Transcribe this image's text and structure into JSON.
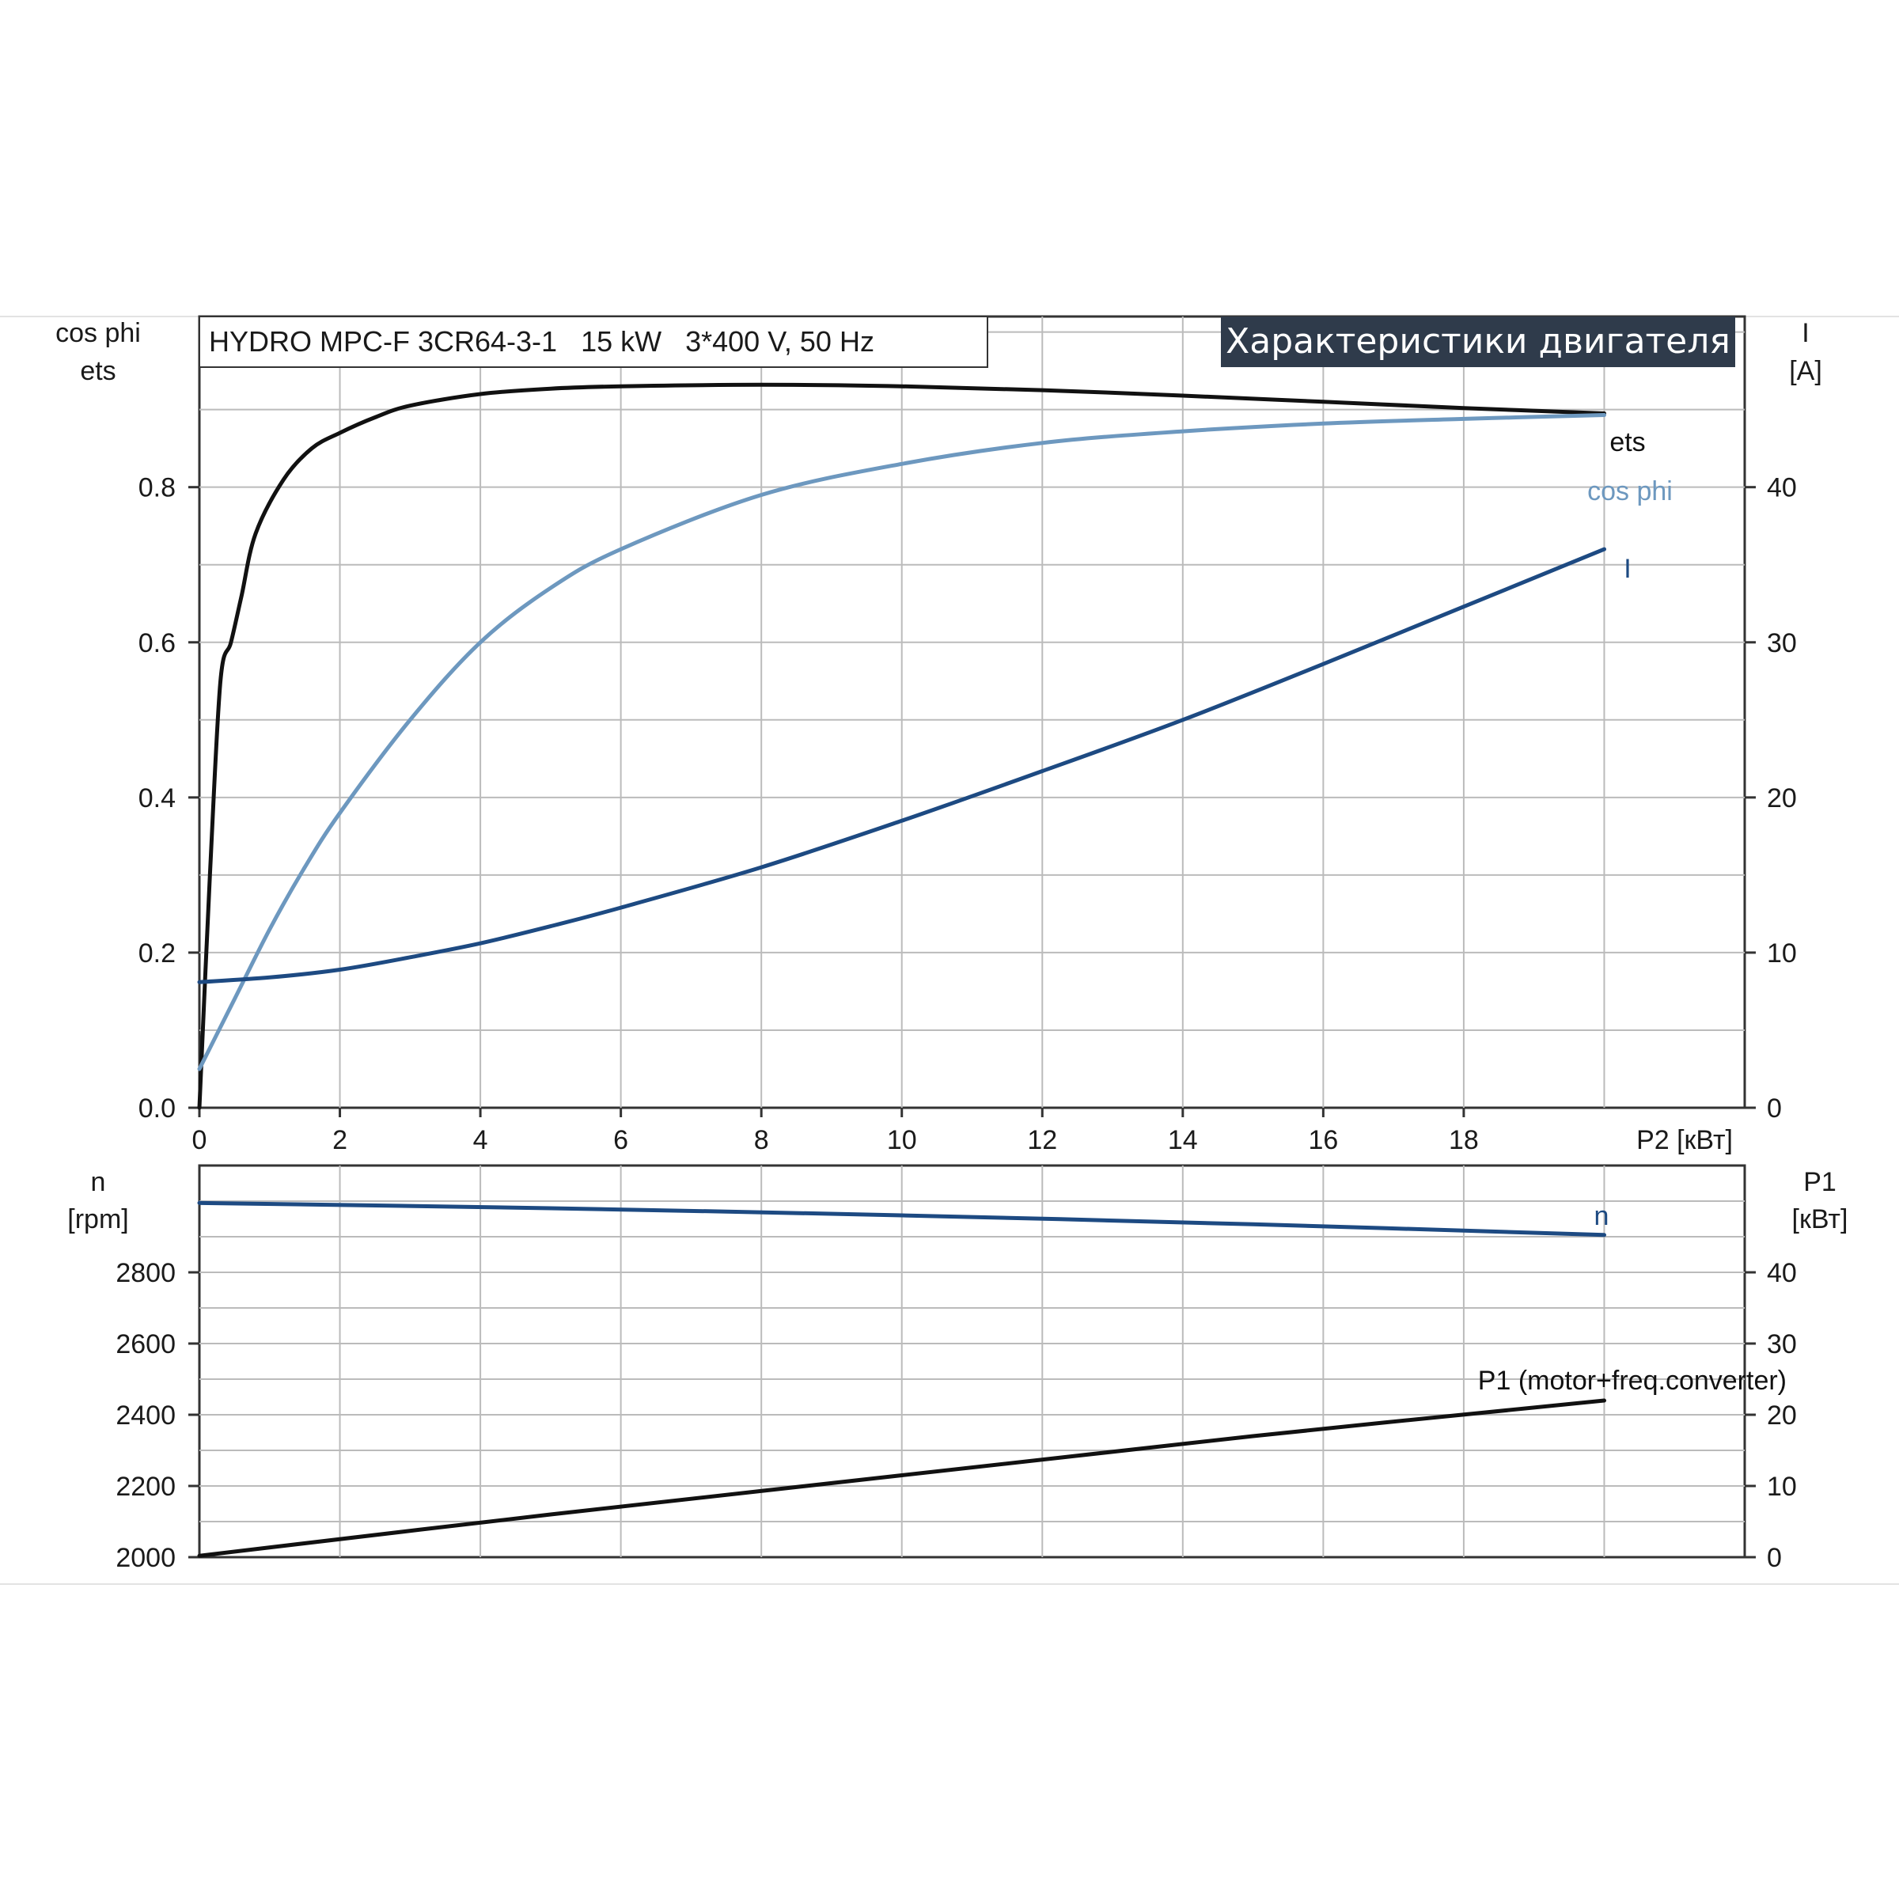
{
  "header": {
    "model": "HYDRO MPC-F 3CR64-3-1   15 kW   3*400 V, 50 Hz",
    "banner": "Характеристики двигателя",
    "banner_color": "#2f3b4b"
  },
  "top": {
    "left_title_1": "cos phi",
    "left_title_2": "ets",
    "right_title_1": "I",
    "right_title_2": "[A]",
    "x_title": "P2 [кВт]",
    "left_ticks": [
      "0.0",
      "0.2",
      "0.4",
      "0.6",
      "0.8"
    ],
    "right_ticks": [
      "0",
      "10",
      "20",
      "30",
      "40"
    ],
    "x_ticks": [
      "0",
      "2",
      "4",
      "6",
      "8",
      "10",
      "12",
      "14",
      "16",
      "18"
    ]
  },
  "bottom": {
    "left_title_1": "n",
    "left_title_2": "[rpm]",
    "right_title_1": "P1",
    "right_title_2": "[кВт]",
    "left_ticks": [
      "2000",
      "2200",
      "2400",
      "2600",
      "2800"
    ],
    "right_ticks": [
      "0",
      "10",
      "20",
      "30",
      "40"
    ]
  },
  "chart_data": [
    {
      "type": "line",
      "title": "Характеристики двигателя",
      "xlabel": "P2 [кВт]",
      "ylabel": "cos phi / ets",
      "y2label": "I [A]",
      "xlim": [
        0,
        22
      ],
      "ylim": [
        0,
        1.02
      ],
      "y2lim": [
        0,
        51
      ],
      "grid": true,
      "series": [
        {
          "name": "ets",
          "axis": "left",
          "color": "#111111",
          "x": [
            0,
            0.15,
            0.3,
            0.45,
            0.6,
            0.8,
            1.2,
            1.6,
            2,
            2.5,
            3,
            4,
            5,
            6,
            8,
            10,
            12,
            14,
            16,
            18,
            20
          ],
          "y": [
            0.0,
            0.3,
            0.55,
            0.6,
            0.66,
            0.74,
            0.81,
            0.85,
            0.87,
            0.89,
            0.905,
            0.92,
            0.927,
            0.93,
            0.932,
            0.93,
            0.925,
            0.918,
            0.91,
            0.902,
            0.895
          ]
        },
        {
          "name": "cos phi",
          "axis": "left",
          "color": "#6d98bf",
          "x": [
            0,
            0.5,
            1,
            1.5,
            2,
            3,
            4,
            5,
            6,
            8,
            10,
            12,
            14,
            16,
            18,
            20
          ],
          "y": [
            0.05,
            0.14,
            0.23,
            0.31,
            0.38,
            0.5,
            0.6,
            0.67,
            0.72,
            0.79,
            0.83,
            0.857,
            0.872,
            0.882,
            0.888,
            0.893
          ]
        },
        {
          "name": "I",
          "axis": "right",
          "color": "#1d4a82",
          "x": [
            0,
            1,
            2,
            3,
            4,
            5,
            6,
            8,
            10,
            12,
            14,
            16,
            18,
            20
          ],
          "y": [
            8.1,
            8.4,
            8.9,
            9.7,
            10.6,
            11.7,
            12.9,
            15.5,
            18.5,
            21.7,
            25.0,
            28.6,
            32.3,
            36.0
          ]
        }
      ]
    },
    {
      "type": "line",
      "xlabel": "P2 [кВт]",
      "ylabel": "n [rpm]",
      "y2label": "P1 [кВт]",
      "xlim": [
        0,
        22
      ],
      "ylim": [
        2000,
        3100
      ],
      "y2lim": [
        0,
        55
      ],
      "grid": true,
      "series": [
        {
          "name": "n",
          "axis": "left",
          "color": "#1d4a82",
          "x": [
            0,
            5,
            10,
            15,
            20
          ],
          "y": [
            2995,
            2980,
            2960,
            2935,
            2905
          ]
        },
        {
          "name": "P1 (motor+freq.converter)",
          "axis": "right",
          "color": "#111111",
          "x": [
            0,
            5,
            10,
            15,
            20
          ],
          "y": [
            0.2,
            6.0,
            11.5,
            17.0,
            22.0
          ]
        }
      ]
    }
  ]
}
